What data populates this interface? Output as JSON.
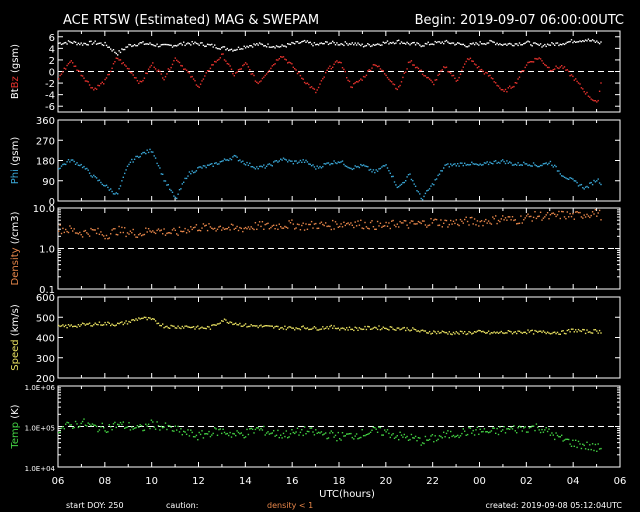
{
  "header": {
    "title": "ACE RTSW (Estimated) MAG & SWEPAM",
    "begin": "Begin: 2019-09-07 06:00:00UTC"
  },
  "footer": {
    "start_doy": "start DOY: 250",
    "caution": "caution:",
    "density_note": "density < 1",
    "created": "created: 2019-09-08 05:12:04UTC"
  },
  "colors": {
    "bt": "#ffffff",
    "bz": "#e8322d",
    "phi": "#3aa8d8",
    "density": "#e8874a",
    "speed": "#e8e060",
    "temp": "#44d444"
  },
  "chart_data": {
    "type": "scatter",
    "x": {
      "label": "UTC(hours)",
      "range_hours": [
        0,
        24
      ],
      "tick_labels": [
        "06",
        "08",
        "10",
        "12",
        "14",
        "16",
        "18",
        "20",
        "22",
        "00",
        "02",
        "04",
        "06"
      ]
    },
    "panels": [
      {
        "name": "mag",
        "ylabel": [
          {
            "text": "Bt",
            "color": "#ffffff"
          },
          {
            "text": "Bz",
            "color": "#e8322d"
          },
          {
            "text": " (gsm)",
            "color": "#ffffff"
          }
        ],
        "ylim": [
          -7,
          7
        ],
        "scale": "linear",
        "ticks": [
          {
            "v": 6,
            "l": "6"
          },
          {
            "v": 4,
            "l": "4"
          },
          {
            "v": 2,
            "l": "2"
          },
          {
            "v": 0,
            "l": "0"
          },
          {
            "v": -2,
            "l": "-2"
          },
          {
            "v": -4,
            "l": "-4"
          },
          {
            "v": -6,
            "l": "-6"
          }
        ],
        "dashed": [
          0
        ],
        "series": [
          {
            "name": "Bt",
            "color": "#ffffff",
            "x": [
              0,
              0.5,
              1,
              1.5,
              2,
              2.5,
              3,
              3.5,
              4,
              4.5,
              5,
              5.5,
              6,
              6.5,
              7,
              7.5,
              8,
              8.5,
              9,
              9.5,
              10,
              10.5,
              11,
              11.5,
              12,
              12.5,
              13,
              13.5,
              14,
              14.5,
              15,
              15.5,
              16,
              16.5,
              17,
              17.5,
              18,
              18.5,
              19,
              19.5,
              20,
              20.5,
              21,
              21.5,
              22,
              22.5,
              23,
              23.2
            ],
            "y": [
              5,
              5.2,
              4.9,
              5.1,
              4.8,
              3.2,
              4.6,
              5,
              4.8,
              4.5,
              4.7,
              5,
              4.9,
              4.6,
              4.2,
              3.9,
              4.5,
              4.8,
              4.6,
              4.4,
              4.9,
              5.2,
              4.7,
              5.1,
              4.9,
              5,
              4.6,
              4.8,
              5.1,
              5.3,
              4.9,
              4.7,
              5,
              5.2,
              4.9,
              4.6,
              5,
              5.2,
              4.8,
              4.9,
              5.1,
              4.6,
              4.8,
              5,
              5.4,
              5.6,
              5.2,
              5
            ]
          },
          {
            "name": "Bz",
            "color": "#e8322d",
            "x": [
              0,
              0.5,
              1,
              1.5,
              2,
              2.5,
              3,
              3.5,
              4,
              4.5,
              5,
              5.5,
              6,
              6.5,
              7,
              7.5,
              8,
              8.5,
              9,
              9.5,
              10,
              10.5,
              11,
              11.5,
              12,
              12.5,
              13,
              13.5,
              14,
              14.5,
              15,
              15.5,
              16,
              16.5,
              17,
              17.5,
              18,
              18.5,
              19,
              19.5,
              20,
              20.5,
              21,
              21.5,
              22,
              22.5,
              23,
              23.2
            ],
            "y": [
              -1,
              2,
              -0.5,
              -3,
              -1.5,
              2.5,
              0.5,
              -2,
              1.5,
              -1,
              2.5,
              0,
              -2.5,
              1,
              3,
              -0.5,
              1.5,
              -2,
              0.5,
              3,
              1,
              -1.5,
              -3.5,
              0.5,
              2,
              -2.5,
              -1,
              1.5,
              -0.5,
              -3,
              2,
              0,
              -2,
              1,
              -1.5,
              2.5,
              0.5,
              -1,
              -3.5,
              -2,
              1.5,
              2.5,
              0.5,
              1,
              -1,
              -3.5,
              -5.5,
              -1
            ]
          }
        ]
      },
      {
        "name": "phi",
        "ylabel": [
          {
            "text": "Phi",
            "color": "#3aa8d8"
          },
          {
            "text": " (gsm)",
            "color": "#ffffff"
          }
        ],
        "ylim": [
          0,
          360
        ],
        "scale": "linear",
        "ticks": [
          {
            "v": 360,
            "l": "360"
          },
          {
            "v": 270,
            "l": "270"
          },
          {
            "v": 180,
            "l": "180"
          },
          {
            "v": 90,
            "l": "90"
          },
          {
            "v": 0,
            "l": "0"
          }
        ],
        "dashed": [],
        "series": [
          {
            "name": "Phi",
            "color": "#3aa8d8",
            "x": [
              0,
              0.5,
              1,
              1.5,
              2,
              2.5,
              3,
              3.5,
              4,
              4.5,
              5,
              5.5,
              6,
              6.5,
              7,
              7.5,
              8,
              8.5,
              9,
              9.5,
              10,
              10.5,
              11,
              11.5,
              12,
              12.5,
              13,
              13.5,
              14,
              14.5,
              15,
              15.5,
              16,
              16.5,
              17,
              17.5,
              18,
              18.5,
              19,
              19.5,
              20,
              20.5,
              21,
              21.5,
              22,
              22.5,
              23,
              23.2
            ],
            "y": [
              150,
              185,
              160,
              110,
              70,
              30,
              170,
              210,
              230,
              100,
              10,
              120,
              150,
              160,
              180,
              200,
              170,
              150,
              160,
              190,
              175,
              180,
              150,
              170,
              180,
              150,
              160,
              130,
              165,
              60,
              120,
              10,
              80,
              160,
              165,
              170,
              160,
              175,
              180,
              165,
              170,
              160,
              175,
              120,
              90,
              60,
              100,
              80
            ]
          }
        ]
      },
      {
        "name": "density",
        "ylabel": [
          {
            "text": "Density",
            "color": "#e8874a"
          },
          {
            "text": " (/cm3)",
            "color": "#ffffff"
          }
        ],
        "ylim": [
          0.1,
          10
        ],
        "scale": "log",
        "ticks": [
          {
            "v": 10,
            "l": "10.0"
          },
          {
            "v": 1,
            "l": "1.0"
          },
          {
            "v": 0.1,
            "l": "0.1"
          }
        ],
        "dashed": [
          1
        ],
        "series": [
          {
            "name": "Density",
            "color": "#e8874a",
            "x": [
              0,
              0.5,
              1,
              1.5,
              2,
              2.5,
              3,
              3.5,
              4,
              4.5,
              5,
              5.5,
              6,
              6.5,
              7,
              7.5,
              8,
              8.5,
              9,
              9.5,
              10,
              10.5,
              11,
              11.5,
              12,
              12.5,
              13,
              13.5,
              14,
              14.5,
              15,
              15.5,
              16,
              16.5,
              17,
              17.5,
              18,
              18.5,
              19,
              19.5,
              20,
              20.5,
              21,
              21.5,
              22,
              22.5,
              23,
              23.2
            ],
            "y": [
              3.2,
              3,
              2.5,
              2.8,
              2.2,
              2.9,
              2.6,
              2.4,
              3.1,
              2.7,
              2.5,
              3.2,
              3.5,
              3.3,
              3.6,
              3.1,
              3.4,
              3.8,
              3.6,
              3.9,
              4.1,
              3.7,
              4,
              3.8,
              4.2,
              4.5,
              4.1,
              3.9,
              3.6,
              4.4,
              4,
              4.3,
              4.8,
              4.4,
              4.6,
              4.9,
              4.7,
              5.2,
              5.8,
              5.1,
              6,
              6.8,
              6.2,
              7.1,
              6.5,
              7.4,
              8,
              6.6
            ]
          }
        ]
      },
      {
        "name": "speed",
        "ylabel": [
          {
            "text": "Speed",
            "color": "#e8e060"
          },
          {
            "text": " (km/s)",
            "color": "#ffffff"
          }
        ],
        "ylim": [
          200,
          600
        ],
        "scale": "linear",
        "ticks": [
          {
            "v": 600,
            "l": "600"
          },
          {
            "v": 500,
            "l": "500"
          },
          {
            "v": 400,
            "l": "400"
          },
          {
            "v": 300,
            "l": "300"
          },
          {
            "v": 200,
            "l": "200"
          }
        ],
        "dashed": [],
        "series": [
          {
            "name": "Speed",
            "color": "#e8e060",
            "x": [
              0,
              0.5,
              1,
              1.5,
              2,
              2.5,
              3,
              3.5,
              4,
              4.5,
              5,
              5.5,
              6,
              6.5,
              7,
              7.5,
              8,
              8.5,
              9,
              9.5,
              10,
              10.5,
              11,
              11.5,
              12,
              12.5,
              13,
              13.5,
              14,
              14.5,
              15,
              15.5,
              16,
              16.5,
              17,
              17.5,
              18,
              18.5,
              19,
              19.5,
              20,
              20.5,
              21,
              21.5,
              22,
              22.5,
              23,
              23.2
            ],
            "y": [
              455,
              460,
              465,
              470,
              472,
              468,
              480,
              500,
              490,
              460,
              455,
              458,
              450,
              452,
              490,
              475,
              462,
              460,
              455,
              452,
              450,
              452,
              448,
              455,
              450,
              446,
              448,
              452,
              450,
              448,
              445,
              432,
              430,
              428,
              425,
              427,
              430,
              425,
              428,
              430,
              432,
              428,
              430,
              427,
              440,
              432,
              435,
              430
            ]
          }
        ]
      },
      {
        "name": "temp",
        "ylabel": [
          {
            "text": "Temp",
            "color": "#44d444"
          },
          {
            "text": " (K)",
            "color": "#ffffff"
          }
        ],
        "ylim": [
          10000,
          1000000
        ],
        "scale": "log",
        "ticks": [
          {
            "v": 1000000,
            "l": "1.0E+06"
          },
          {
            "v": 100000,
            "l": "1.0E+05"
          },
          {
            "v": 10000,
            "l": "1.0E+04"
          }
        ],
        "dashed": [
          100000
        ],
        "series": [
          {
            "name": "Temp",
            "color": "#44d444",
            "x": [
              0,
              0.5,
              1,
              1.5,
              2,
              2.5,
              3,
              3.5,
              4,
              4.5,
              5,
              5.5,
              6,
              6.5,
              7,
              7.5,
              8,
              8.5,
              9,
              9.5,
              10,
              10.5,
              11,
              11.5,
              12,
              12.5,
              13,
              13.5,
              14,
              14.5,
              15,
              15.5,
              16,
              16.5,
              17,
              17.5,
              18,
              18.5,
              19,
              19.5,
              20,
              20.5,
              21,
              21.5,
              22,
              22.5,
              23,
              23.2
            ],
            "y": [
              90000,
              110000,
              130000,
              100000,
              95000,
              115000,
              105000,
              90000,
              120000,
              100000,
              85000,
              70000,
              60000,
              75000,
              80000,
              65000,
              70000,
              90000,
              75000,
              65000,
              70000,
              80000,
              72000,
              66000,
              58000,
              62000,
              70000,
              80000,
              75000,
              60000,
              55000,
              45000,
              52000,
              62000,
              70000,
              78000,
              80000,
              75000,
              85000,
              90000,
              95000,
              100000,
              70000,
              50000,
              40000,
              35000,
              30000,
              32000
            ]
          }
        ]
      }
    ]
  }
}
